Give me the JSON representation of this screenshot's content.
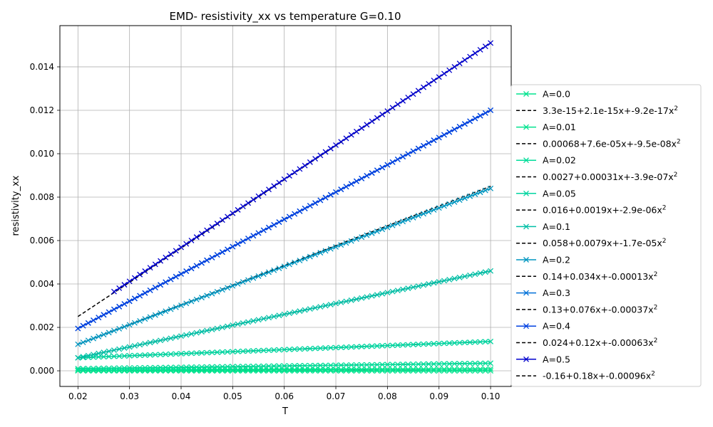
{
  "chart_data": {
    "type": "line",
    "title": "EMD- resistivity_xx vs temperature G=0.10",
    "xlabel": "T",
    "ylabel": "resistivity_xx",
    "xlim": [
      0.0165,
      0.104
    ],
    "ylim": [
      -0.00072,
      0.0159
    ],
    "x_ticks": [
      "0.02",
      "0.03",
      "0.04",
      "0.05",
      "0.06",
      "0.07",
      "0.08",
      "0.09",
      "0.10"
    ],
    "x_tick_values": [
      0.02,
      0.03,
      0.04,
      0.05,
      0.06,
      0.07,
      0.08,
      0.09,
      0.1
    ],
    "y_ticks": [
      "0.000",
      "0.002",
      "0.004",
      "0.006",
      "0.008",
      "0.010",
      "0.012",
      "0.014"
    ],
    "y_tick_values": [
      0,
      0.002,
      0.004,
      0.006,
      0.008,
      0.01,
      0.012,
      0.014
    ],
    "grid": true,
    "legend_position": "right",
    "marker": "x",
    "fit_line_color": "#000000",
    "fit_line_style": "dashed",
    "series": [
      {
        "name": "A=0.0",
        "color": "#00e38e",
        "x_start": 0.02,
        "x_end": 0.1,
        "y_start": 0.0,
        "y_end": 0.0,
        "fit_label": "3.3e-15+2.1e-15x+-9.2e-17x",
        "fit_y_start": 0.0,
        "fit_y_end": 0.0
      },
      {
        "name": "A=0.01",
        "color": "#00e38e",
        "x_start": 0.02,
        "x_end": 0.1,
        "y_start": 3e-05,
        "y_end": 8e-05,
        "fit_label": "0.00068+7.6e-05x+-9.5e-08x",
        "fit_y_start": 3e-05,
        "fit_y_end": 8e-05
      },
      {
        "name": "A=0.02",
        "color": "#00dd99",
        "x_start": 0.02,
        "x_end": 0.1,
        "y_start": 0.0001,
        "y_end": 0.00035,
        "fit_label": "0.0027+0.00031x+-3.9e-07x",
        "fit_y_start": 0.0001,
        "fit_y_end": 0.00035
      },
      {
        "name": "A=0.05",
        "color": "#00d5a0",
        "x_start": 0.02,
        "x_end": 0.1,
        "y_start": 0.0006,
        "y_end": 0.00135,
        "fit_label": "0.016+0.0019x+-2.9e-06x",
        "fit_y_start": 0.0006,
        "fit_y_end": 0.00135
      },
      {
        "name": "A=0.1",
        "color": "#00bfa6",
        "x_start": 0.02,
        "x_end": 0.1,
        "y_start": 0.0006,
        "y_end": 0.0046,
        "fit_label": "0.058+0.0079x+-1.7e-05x",
        "fit_y_start": 0.0006,
        "fit_y_end": 0.0046
      },
      {
        "name": "A=0.2",
        "color": "#0096c0",
        "x_start": 0.02,
        "x_end": 0.1,
        "y_start": 0.00122,
        "y_end": 0.0084,
        "fit_label": "0.14+0.034x+-0.00013x",
        "fit_y_start": 0.00122,
        "fit_y_end": 0.0085
      },
      {
        "name": "A=0.3",
        "color": "#0070d8",
        "x_start": 0.02,
        "x_end": 0.1,
        "y_start": 0.00195,
        "y_end": 0.012,
        "fit_label": "0.13+0.076x+-0.00037x",
        "fit_y_start": 0.00195,
        "fit_y_end": 0.012
      },
      {
        "name": "A=0.4",
        "color": "#0040e0",
        "x_start": 0.02,
        "x_end": 0.1,
        "y_start": 0.00195,
        "y_end": 0.012,
        "fit_label": "0.024+0.12x+-0.00063x",
        "fit_y_start": 0.00195,
        "fit_y_end": 0.012
      },
      {
        "name": "A=0.5",
        "color": "#0000cd",
        "x_start": 0.027,
        "x_end": 0.1,
        "y_start": 0.00365,
        "y_end": 0.0151,
        "fit_label": "-0.16+0.18x+-0.00096x",
        "fit_x_start": 0.02,
        "fit_y_start": 0.0025,
        "fit_y_end": 0.0151
      }
    ]
  }
}
